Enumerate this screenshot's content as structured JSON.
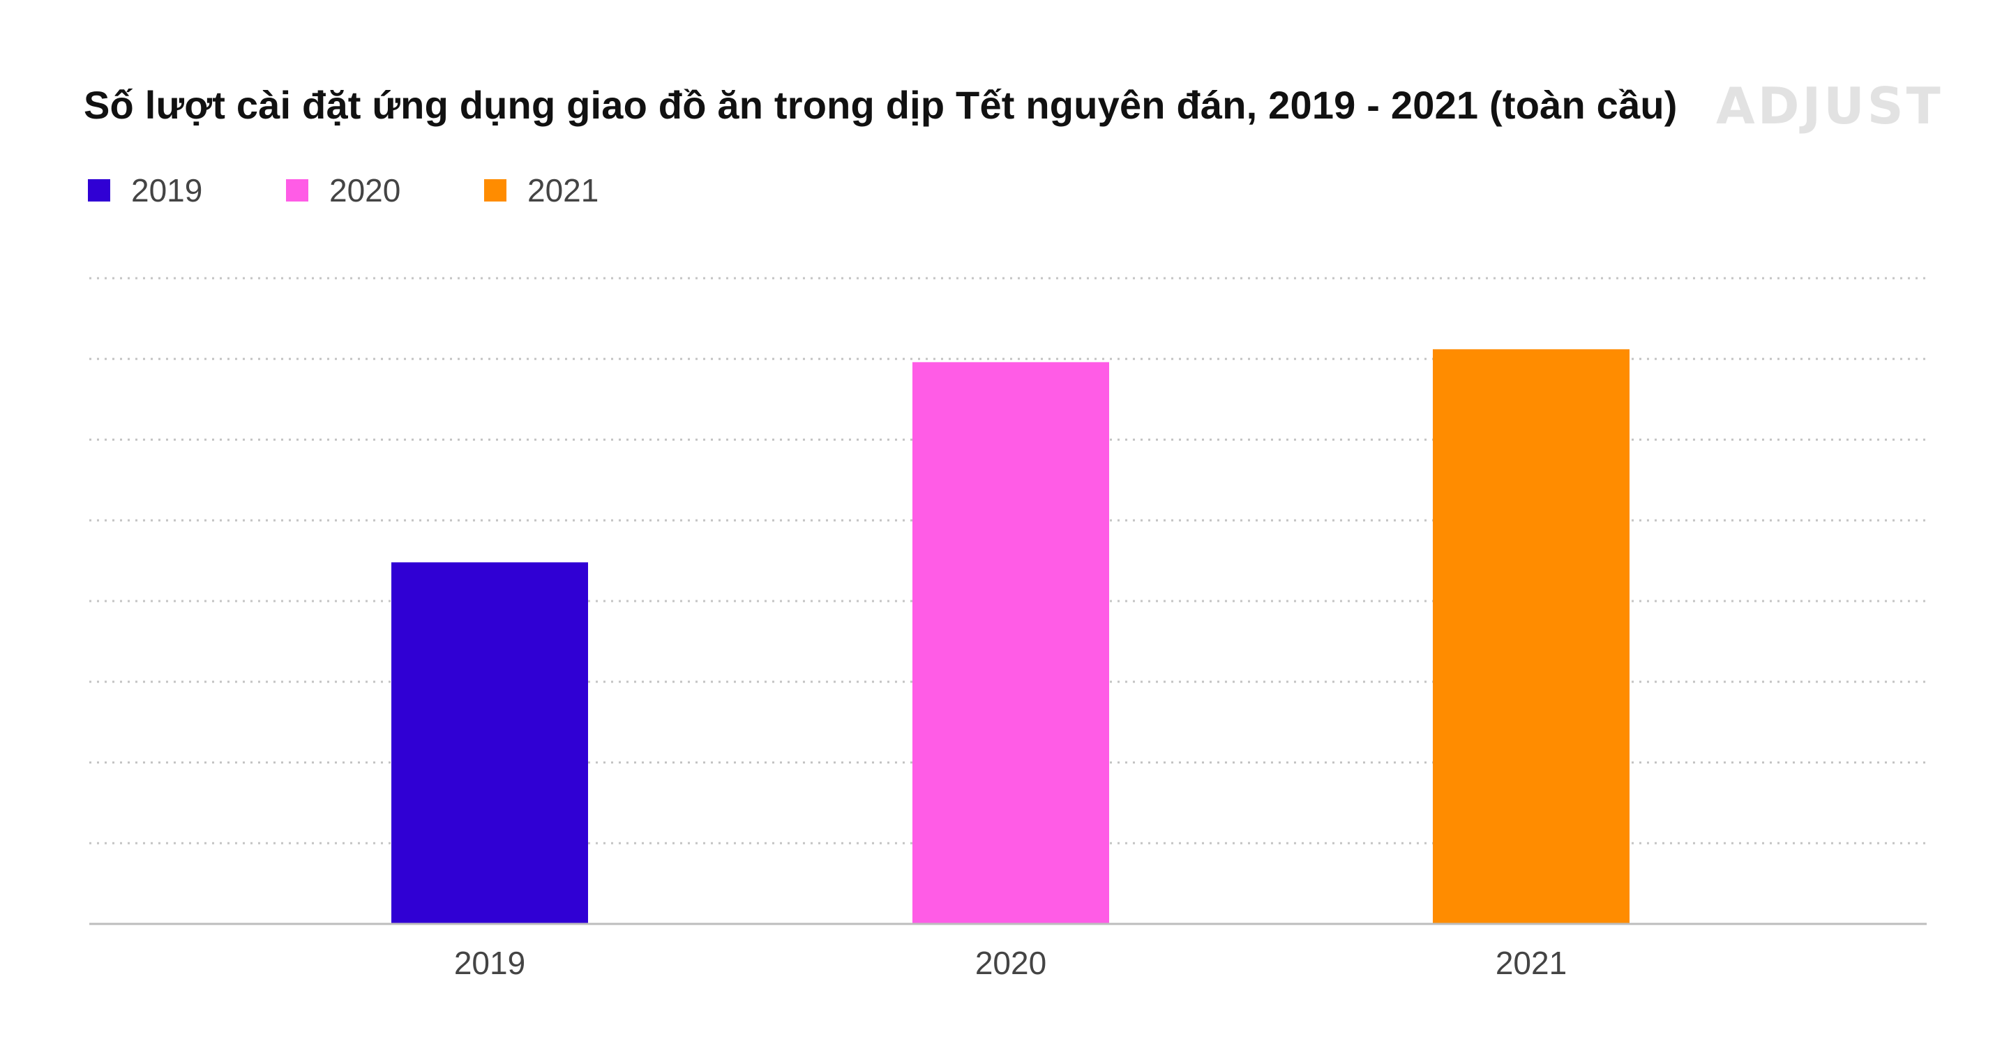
{
  "chart_data": {
    "type": "bar",
    "title": "Số lượt cài đặt ứng dụng giao đồ ăn trong dịp Tết nguyên đán, 2019 - 2021 (toàn cầu)",
    "xlabel": "",
    "ylabel": "",
    "categories": [
      "2019",
      "2020",
      "2021"
    ],
    "values": [
      56,
      87,
      89
    ],
    "colors": [
      "#3000d4",
      "#ff5ce6",
      "#ff8c00"
    ],
    "ylim": [
      0,
      100
    ],
    "grid": true,
    "gridlines": 8,
    "y_tick_labels_shown": false,
    "legend_position": "top-left",
    "legend": [
      {
        "label": "2019",
        "color": "#3000d4"
      },
      {
        "label": "2020",
        "color": "#ff5ce6"
      },
      {
        "label": "2021",
        "color": "#ff8c00"
      }
    ]
  },
  "brand": {
    "logo_text": "ADJUST",
    "logo_color": "#e2e2e2"
  }
}
